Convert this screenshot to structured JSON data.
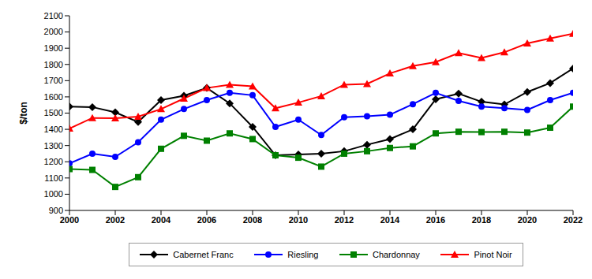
{
  "chart_data": {
    "type": "line",
    "ylabel": "$/ton",
    "x": [
      2000,
      2001,
      2002,
      2003,
      2004,
      2005,
      2006,
      2007,
      2008,
      2009,
      2010,
      2011,
      2012,
      2013,
      2014,
      2015,
      2016,
      2017,
      2018,
      2019,
      2020,
      2021,
      2022
    ],
    "xlim": [
      2000,
      2022
    ],
    "xticks": [
      2000,
      2002,
      2004,
      2006,
      2008,
      2010,
      2012,
      2014,
      2016,
      2018,
      2020,
      2022
    ],
    "ylim": [
      900,
      2100
    ],
    "yticks": [
      900,
      1000,
      1100,
      1200,
      1300,
      1400,
      1500,
      1600,
      1700,
      1800,
      1900,
      2000,
      2100
    ],
    "grid": false,
    "legend": "bottom",
    "series": [
      {
        "name": "Cabernet Franc",
        "color": "#000000",
        "marker": "diamond",
        "values": [
          1540,
          1537,
          1505,
          1445,
          1580,
          1607,
          1655,
          1560,
          1415,
          1240,
          1245,
          1250,
          1265,
          1305,
          1340,
          1400,
          1585,
          1620,
          1570,
          1553,
          1630,
          1685,
          1775
        ]
      },
      {
        "name": "Riesling",
        "color": "#0000ff",
        "marker": "circle",
        "values": [
          1190,
          1250,
          1230,
          1320,
          1460,
          1525,
          1580,
          1625,
          1610,
          1415,
          1460,
          1365,
          1475,
          1480,
          1490,
          1555,
          1625,
          1575,
          1540,
          1530,
          1520,
          1580,
          1625
        ]
      },
      {
        "name": "Chardonnay",
        "color": "#008000",
        "marker": "square",
        "values": [
          1155,
          1150,
          1045,
          1105,
          1280,
          1360,
          1330,
          1375,
          1340,
          1240,
          1225,
          1170,
          1250,
          1265,
          1285,
          1295,
          1375,
          1385,
          1383,
          1385,
          1380,
          1410,
          1540
        ]
      },
      {
        "name": "Pinot Noir",
        "color": "#ff0000",
        "marker": "triangle",
        "values": [
          1405,
          1470,
          1468,
          1478,
          1525,
          1590,
          1655,
          1675,
          1665,
          1530,
          1565,
          1605,
          1675,
          1680,
          1745,
          1790,
          1815,
          1870,
          1840,
          1875,
          1930,
          1960,
          1990
        ]
      }
    ]
  }
}
